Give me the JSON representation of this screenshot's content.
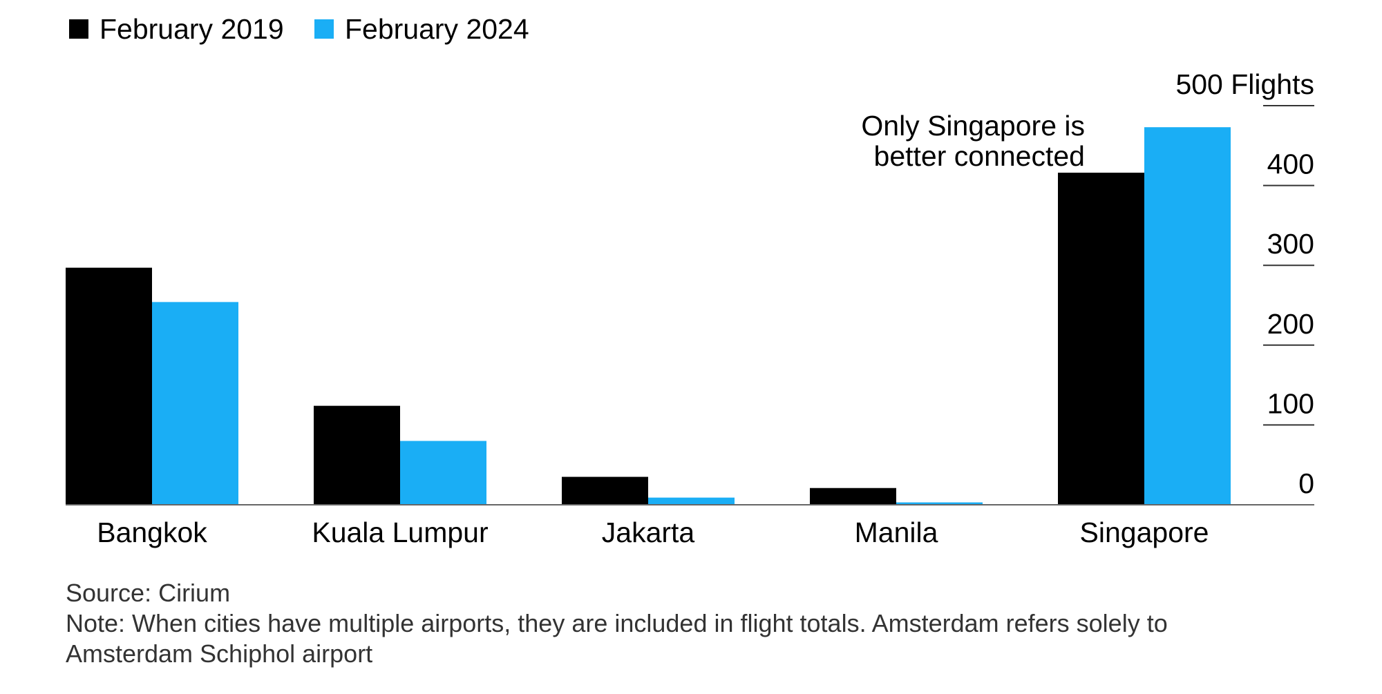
{
  "chart_data": {
    "type": "bar",
    "title": "",
    "xlabel": "",
    "ylabel": "",
    "y_unit_label": "500 Flights",
    "categories": [
      "Bangkok",
      "Kuala Lumpur",
      "Jakarta",
      "Manila",
      "Singapore"
    ],
    "series": [
      {
        "name": "February 2019",
        "color": "#000000",
        "values": [
          297,
          124,
          35,
          21,
          416
        ]
      },
      {
        "name": "February 2024",
        "color": "#1aaef5",
        "values": [
          254,
          80,
          9,
          3,
          473
        ]
      }
    ],
    "ylim": [
      0,
      500
    ],
    "yticks": [
      0,
      100,
      200,
      300,
      400,
      500
    ],
    "ytick_labels": [
      "0",
      "100",
      "200",
      "300",
      "400",
      "500 Flights"
    ],
    "y_axis_position": "right",
    "legend_position": "top-left",
    "grid": false,
    "annotations": [
      {
        "lines": [
          "Only Singapore is",
          "better connected"
        ],
        "category": "Singapore"
      }
    ]
  },
  "footer": {
    "source": "Source: Cirium",
    "note_line1": "Note: When cities have multiple airports, they are included in flight totals. Amsterdam refers solely to",
    "note_line2": "Amsterdam Schiphol airport"
  }
}
